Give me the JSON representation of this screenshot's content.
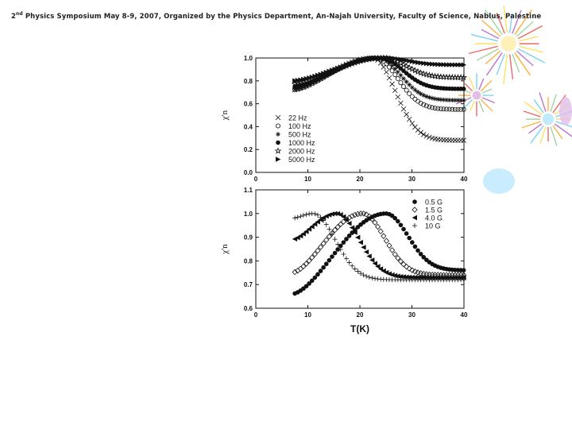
{
  "header": {
    "superscript": "nd",
    "pre": "2",
    "text": " Physics Symposium May 8-9, 2007, Organized by the Physics Department, An-Najah University, Faculty of Science, Nablus, Palestine"
  },
  "colors": {
    "fireworks": [
      "#e53935",
      "#fdd835",
      "#4fc3f7",
      "#ab47bc",
      "#ff9800",
      "#81c784"
    ]
  },
  "chart_data": [
    {
      "type": "scatter",
      "id": "top",
      "xlabel": "",
      "ylabel": "χ'n",
      "xlim": [
        0,
        40
      ],
      "ylim": [
        0.0,
        1.0
      ],
      "xticks": [
        "0",
        "10",
        "20",
        "30",
        "40"
      ],
      "yticks": [
        "0.0",
        "0.2",
        "0.4",
        "0.6",
        "0.8",
        "1.0"
      ],
      "legend_position": "lower-left",
      "series": [
        {
          "name": "22 Hz",
          "marker": "x",
          "peak_T": 22.5,
          "start": 0.72,
          "tail": 0.28
        },
        {
          "name": "100 Hz",
          "marker": "circle-open",
          "peak_T": 23.0,
          "start": 0.72,
          "tail": 0.55
        },
        {
          "name": "500 Hz",
          "marker": "asterisk",
          "peak_T": 23.5,
          "start": 0.73,
          "tail": 0.63
        },
        {
          "name": "1000 Hz",
          "marker": "circle-filled",
          "peak_T": 24.0,
          "start": 0.75,
          "tail": 0.73
        },
        {
          "name": "2000 Hz",
          "marker": "star-open",
          "peak_T": 24.5,
          "start": 0.77,
          "tail": 0.83
        },
        {
          "name": "5000 Hz",
          "marker": "triangle-right",
          "peak_T": 25.0,
          "start": 0.8,
          "tail": 0.94
        }
      ]
    },
    {
      "type": "scatter",
      "id": "bottom",
      "xlabel": "T(K)",
      "ylabel": "χ'n",
      "xlim": [
        0,
        40
      ],
      "ylim": [
        0.6,
        1.1
      ],
      "xticks": [
        "0",
        "10",
        "20",
        "30",
        "40"
      ],
      "yticks": [
        "0.6",
        "0.7",
        "0.8",
        "0.9",
        "1.0",
        "1.1"
      ],
      "legend_position": "upper-right",
      "series": [
        {
          "name": "0.5 G",
          "marker": "circle-filled",
          "peak_T": 25.0,
          "start": 0.66,
          "tail": 0.76
        },
        {
          "name": "1.5 G",
          "marker": "diamond-open",
          "peak_T": 20.5,
          "start": 0.75,
          "tail": 0.74
        },
        {
          "name": "4.0 G",
          "marker": "triangle-left",
          "peak_T": 15.5,
          "start": 0.89,
          "tail": 0.73
        },
        {
          "name": "10 G",
          "marker": "plus",
          "peak_T": 11.0,
          "start": 0.98,
          "tail": 0.72
        }
      ]
    }
  ]
}
